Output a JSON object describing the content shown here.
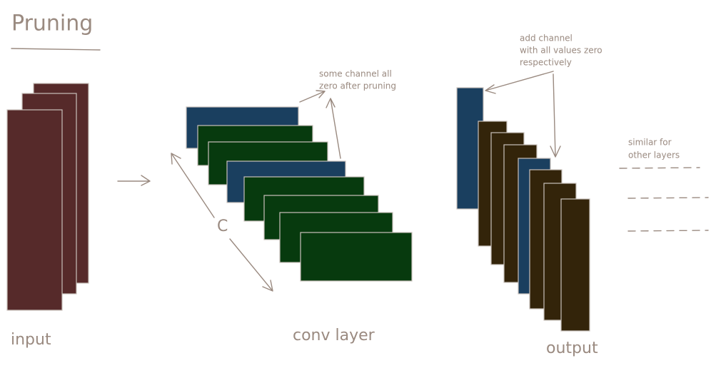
{
  "title": "Pruning",
  "labels": {
    "input": "input",
    "conv": "conv layer",
    "output": "output",
    "channels": "C"
  },
  "annotations": {
    "pruned": [
      "some channel all",
      "zero after pruning"
    ],
    "added": [
      "add channel",
      "with all values zero",
      "respectively"
    ],
    "similar": [
      "similar for",
      "other layers"
    ]
  }
}
